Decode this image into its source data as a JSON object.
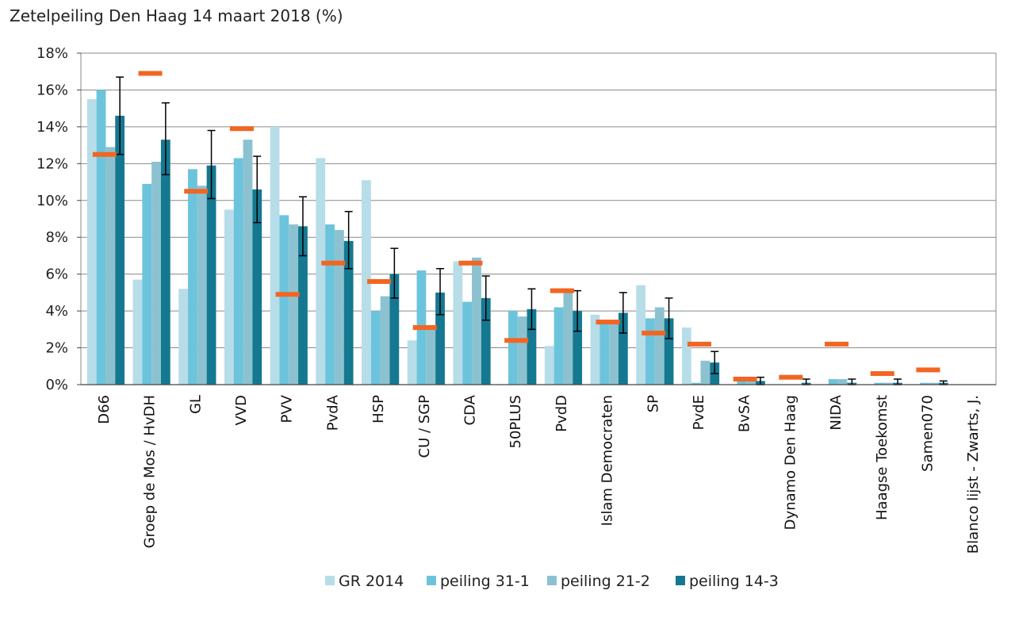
{
  "chart_data": {
    "type": "bar",
    "title": "Zetelpeiling Den Haag 14 maart 2018 (%)",
    "ylim": [
      0,
      18
    ],
    "yticks": [
      "0%",
      "2%",
      "4%",
      "6%",
      "8%",
      "10%",
      "12%",
      "14%",
      "16%",
      "18%"
    ],
    "grid": true,
    "legend_position": "bottom",
    "colors": {
      "GR 2014": "#b7dde8",
      "peiling 31-1": "#6cc4dc",
      "peiling 21-2": "#8cc2d0",
      "peiling 14-3": "#157891",
      "marker": "#f26522",
      "error": "#000000"
    },
    "categories": [
      "D66",
      "Groep de Mos / HvDH",
      "GL",
      "VVD",
      "PVV",
      "PvdA",
      "HSP",
      "CU / SGP",
      "CDA",
      "50PLUS",
      "PvdD",
      "Islam Democraten",
      "SP",
      "PvdE",
      "BvSA",
      "Dynamo Den Haag",
      "NIDA",
      "Haagse Toekomst",
      "Samen070",
      "Blanco lijst - Zwarts, J."
    ],
    "series": [
      {
        "name": "GR 2014",
        "values": [
          15.5,
          5.7,
          5.2,
          9.5,
          14.0,
          12.3,
          11.1,
          2.4,
          6.7,
          0,
          2.1,
          3.8,
          5.4,
          3.1,
          0,
          0,
          0,
          0,
          0,
          0
        ]
      },
      {
        "name": "peiling 31-1",
        "values": [
          16.0,
          10.9,
          11.7,
          12.3,
          9.2,
          8.7,
          4.0,
          6.2,
          4.5,
          4.0,
          4.2,
          3.4,
          3.6,
          0.1,
          0.3,
          0,
          0.3,
          0.1,
          0.1,
          0
        ]
      },
      {
        "name": "peiling 21-2",
        "values": [
          12.9,
          12.1,
          10.8,
          13.3,
          8.7,
          8.4,
          4.8,
          3.0,
          6.9,
          3.7,
          5.0,
          3.5,
          4.2,
          1.3,
          0.3,
          0,
          0.3,
          0.1,
          0.1,
          0
        ]
      },
      {
        "name": "peiling 14-3",
        "values": [
          14.6,
          13.3,
          11.9,
          10.6,
          8.6,
          7.8,
          6.0,
          5.0,
          4.7,
          4.1,
          4.0,
          3.9,
          3.6,
          1.2,
          0.2,
          0.1,
          0.1,
          0.1,
          0.1,
          0
        ],
        "error_low": [
          12.5,
          11.4,
          10.1,
          8.8,
          7.0,
          6.3,
          4.7,
          3.8,
          3.5,
          3.0,
          2.9,
          2.8,
          2.5,
          0.6,
          0,
          0,
          0,
          0,
          0,
          0
        ],
        "error_high": [
          16.7,
          15.3,
          13.8,
          12.4,
          10.2,
          9.4,
          7.4,
          6.3,
          5.9,
          5.2,
          5.1,
          5.0,
          4.7,
          1.8,
          0.4,
          0.3,
          0.3,
          0.3,
          0.2,
          0
        ]
      }
    ],
    "markers": [
      12.5,
      16.9,
      10.5,
      13.9,
      4.9,
      6.6,
      5.6,
      3.1,
      6.6,
      2.4,
      5.1,
      3.4,
      2.8,
      2.2,
      0.3,
      0.4,
      2.2,
      0.6,
      0.8,
      null
    ]
  }
}
